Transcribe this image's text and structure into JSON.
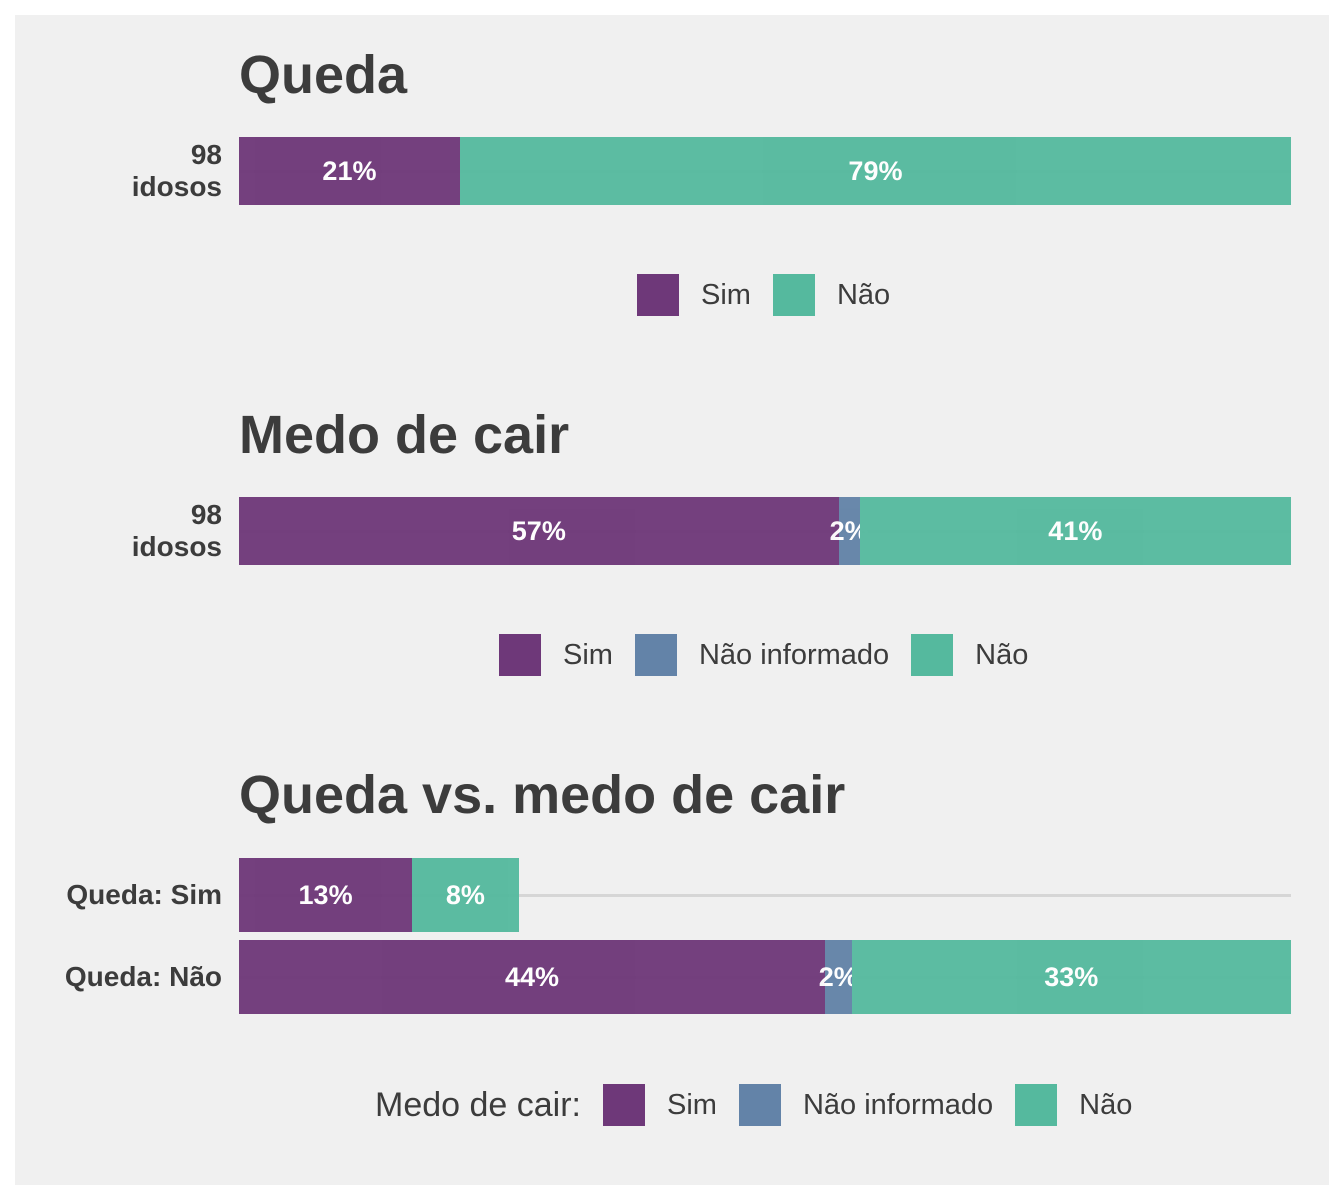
{
  "colors": {
    "sim": "#6e3879",
    "nao_informado": "#6383a8",
    "nao": "#55b99e"
  },
  "chart_data": [
    {
      "type": "bar",
      "title": "Queda",
      "orientation": "horizontal-stacked-percent",
      "categories": [
        "98\nidosos"
      ],
      "series": [
        {
          "name": "Sim",
          "values": [
            21
          ]
        },
        {
          "name": "Não",
          "values": [
            79
          ]
        }
      ],
      "data_labels": [
        [
          "21%",
          "79%"
        ]
      ],
      "xlim": [
        0,
        100
      ],
      "legend": {
        "position": "bottom",
        "title": "",
        "items": [
          "Sim",
          "Não"
        ]
      }
    },
    {
      "type": "bar",
      "title": "Medo de cair",
      "orientation": "horizontal-stacked-percent",
      "categories": [
        "98\nidosos"
      ],
      "series": [
        {
          "name": "Sim",
          "values": [
            57
          ]
        },
        {
          "name": "Não informado",
          "values": [
            2
          ]
        },
        {
          "name": "Não",
          "values": [
            41
          ]
        }
      ],
      "data_labels": [
        [
          "57%",
          "2%",
          "41%"
        ]
      ],
      "xlim": [
        0,
        100
      ],
      "legend": {
        "position": "bottom",
        "title": "",
        "items": [
          "Sim",
          "Não informado",
          "Não"
        ]
      }
    },
    {
      "type": "bar",
      "title": "Queda vs. medo de cair",
      "orientation": "horizontal-stacked-percent",
      "categories": [
        "Queda: Sim",
        "Queda: Não"
      ],
      "series": [
        {
          "name": "Sim",
          "values": [
            13,
            44
          ]
        },
        {
          "name": "Não informado",
          "values": [
            0,
            2
          ]
        },
        {
          "name": "Não",
          "values": [
            8,
            33
          ]
        }
      ],
      "data_labels": [
        [
          "13%",
          "",
          "8%"
        ],
        [
          "44%",
          "2%",
          "33%"
        ]
      ],
      "xlim": [
        0,
        79
      ],
      "legend": {
        "position": "bottom",
        "title": "Medo de cair:",
        "items": [
          "Sim",
          "Não informado",
          "Não"
        ]
      }
    }
  ]
}
